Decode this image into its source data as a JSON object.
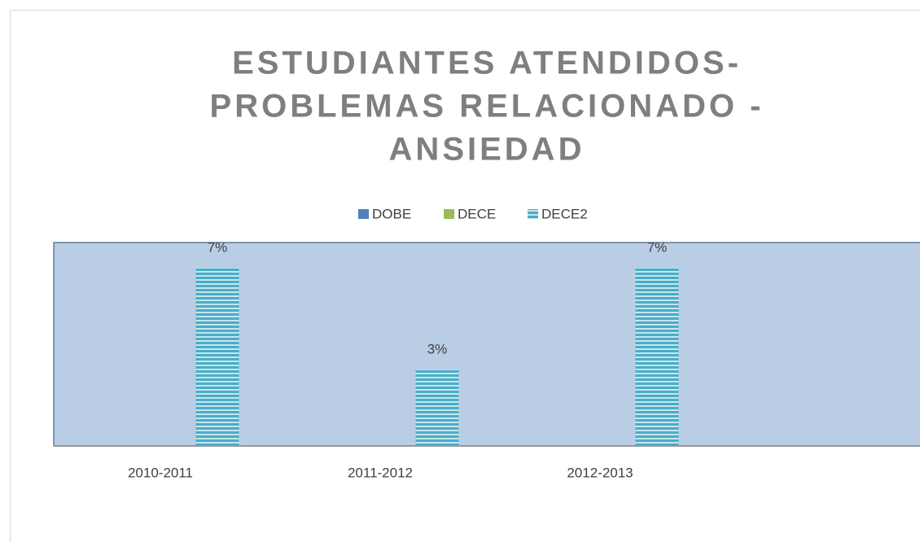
{
  "chart_data": {
    "type": "bar",
    "title": [
      "ESTUDIANTES ATENDIDOS-",
      "PROBLEMAS RELACIONADO -",
      "ANSIEDAD"
    ],
    "categories": [
      "2010-2011",
      "2011-2012",
      "2012-2013",
      null
    ],
    "series": [
      {
        "name": "DOBE",
        "color": "#4f81bd",
        "values": [
          null,
          null,
          null,
          null
        ]
      },
      {
        "name": "DECE",
        "color": "#9bbb59",
        "values": [
          null,
          null,
          null,
          null
        ]
      },
      {
        "name": "DECE2",
        "color": "#4bacc6",
        "values": [
          7,
          3,
          7,
          null
        ],
        "value_labels": [
          "7%",
          "3%",
          "7%",
          null
        ]
      }
    ],
    "ylim": [
      0,
      8
    ],
    "plot_background": "#b9cde5",
    "legend": "top"
  }
}
